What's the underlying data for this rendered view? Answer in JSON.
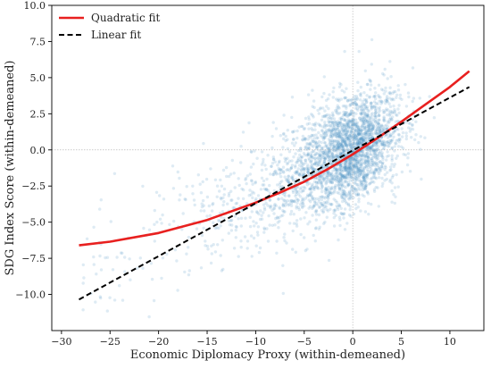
{
  "chart_data": {
    "type": "scatter",
    "title": "",
    "xlabel": "Economic Diplomacy Proxy (within-demeaned)",
    "ylabel": "SDG Index Score (within-demeaned)",
    "xlim": [
      -31,
      13.5
    ],
    "ylim": [
      -12.5,
      10
    ],
    "xticks": [
      -30,
      -25,
      -20,
      -15,
      -10,
      -5,
      0,
      5,
      10
    ],
    "yticks": [
      -10.0,
      -7.5,
      -5.0,
      -2.5,
      0.0,
      2.5,
      5.0,
      7.5,
      10.0
    ],
    "xtick_labels": [
      "−30",
      "−25",
      "−20",
      "−15",
      "−10",
      "−5",
      "0",
      "5",
      "10"
    ],
    "ytick_labels": [
      "−10.0",
      "−7.5",
      "−5.0",
      "−2.5",
      "0.0",
      "2.5",
      "5.0",
      "7.5",
      "10.0"
    ],
    "reference_lines": {
      "x": 0,
      "y": 0
    },
    "legend": {
      "placement": "top-left",
      "entries": [
        {
          "label": "Quadratic fit",
          "color": "#e8201f",
          "style": "solid"
        },
        {
          "label": "Linear fit",
          "color": "#000000",
          "style": "dashed"
        }
      ]
    },
    "scatter": {
      "color": "#4a90c2",
      "approx_count": 3000,
      "center": [
        0,
        0
      ],
      "description_of_spread": "dense cloud around x in [-5, 5], y in [-5, 5], sparse tail toward x = -28"
    },
    "series": [
      {
        "name": "Quadratic fit",
        "color": "#e8201f",
        "x": [
          -28.2,
          -25,
          -20,
          -15,
          -10,
          -7.5,
          -5,
          -2.5,
          0,
          2.5,
          5,
          7.5,
          10,
          12
        ],
        "y": [
          -6.6,
          -6.35,
          -5.75,
          -4.85,
          -3.65,
          -2.95,
          -2.2,
          -1.3,
          -0.3,
          0.8,
          1.95,
          3.15,
          4.35,
          5.45
        ]
      },
      {
        "name": "Linear fit",
        "color": "#000000",
        "x": [
          -28.2,
          12
        ],
        "y": [
          -10.35,
          4.35
        ]
      }
    ]
  }
}
